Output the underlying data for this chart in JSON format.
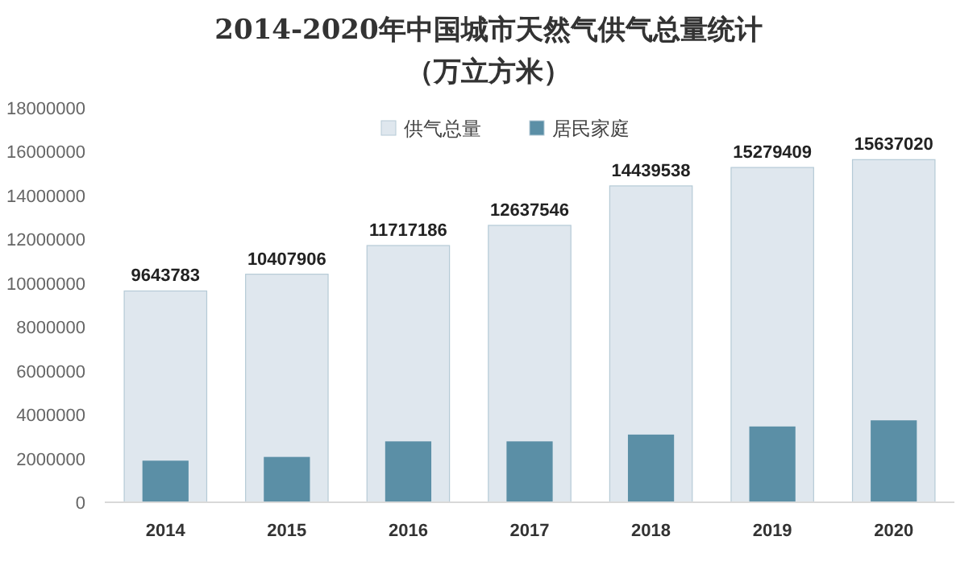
{
  "chart_data": {
    "type": "bar",
    "title": "2014-2020年中国城市天然气供气总量统计",
    "subtitle": "（万立方米）",
    "categories": [
      "2014",
      "2015",
      "2016",
      "2017",
      "2018",
      "2019",
      "2020"
    ],
    "series": [
      {
        "name": "供气总量",
        "color": "#dfe7ee",
        "values": [
          9643783,
          10407906,
          11717186,
          12637546,
          14439538,
          15279409,
          15637020
        ],
        "value_labels": [
          "9643783",
          "10407906",
          "11717186",
          "12637546",
          "14439538",
          "15279409",
          "15637020"
        ]
      },
      {
        "name": "居民家庭",
        "color": "#5b8fa6",
        "values": [
          1900000,
          2070000,
          2780000,
          2780000,
          3090000,
          3460000,
          3740000
        ]
      }
    ],
    "ylim": [
      0,
      18000000
    ],
    "yticks": [
      0,
      2000000,
      4000000,
      6000000,
      8000000,
      10000000,
      12000000,
      14000000,
      16000000,
      18000000
    ],
    "grid": false,
    "legend": "top"
  }
}
